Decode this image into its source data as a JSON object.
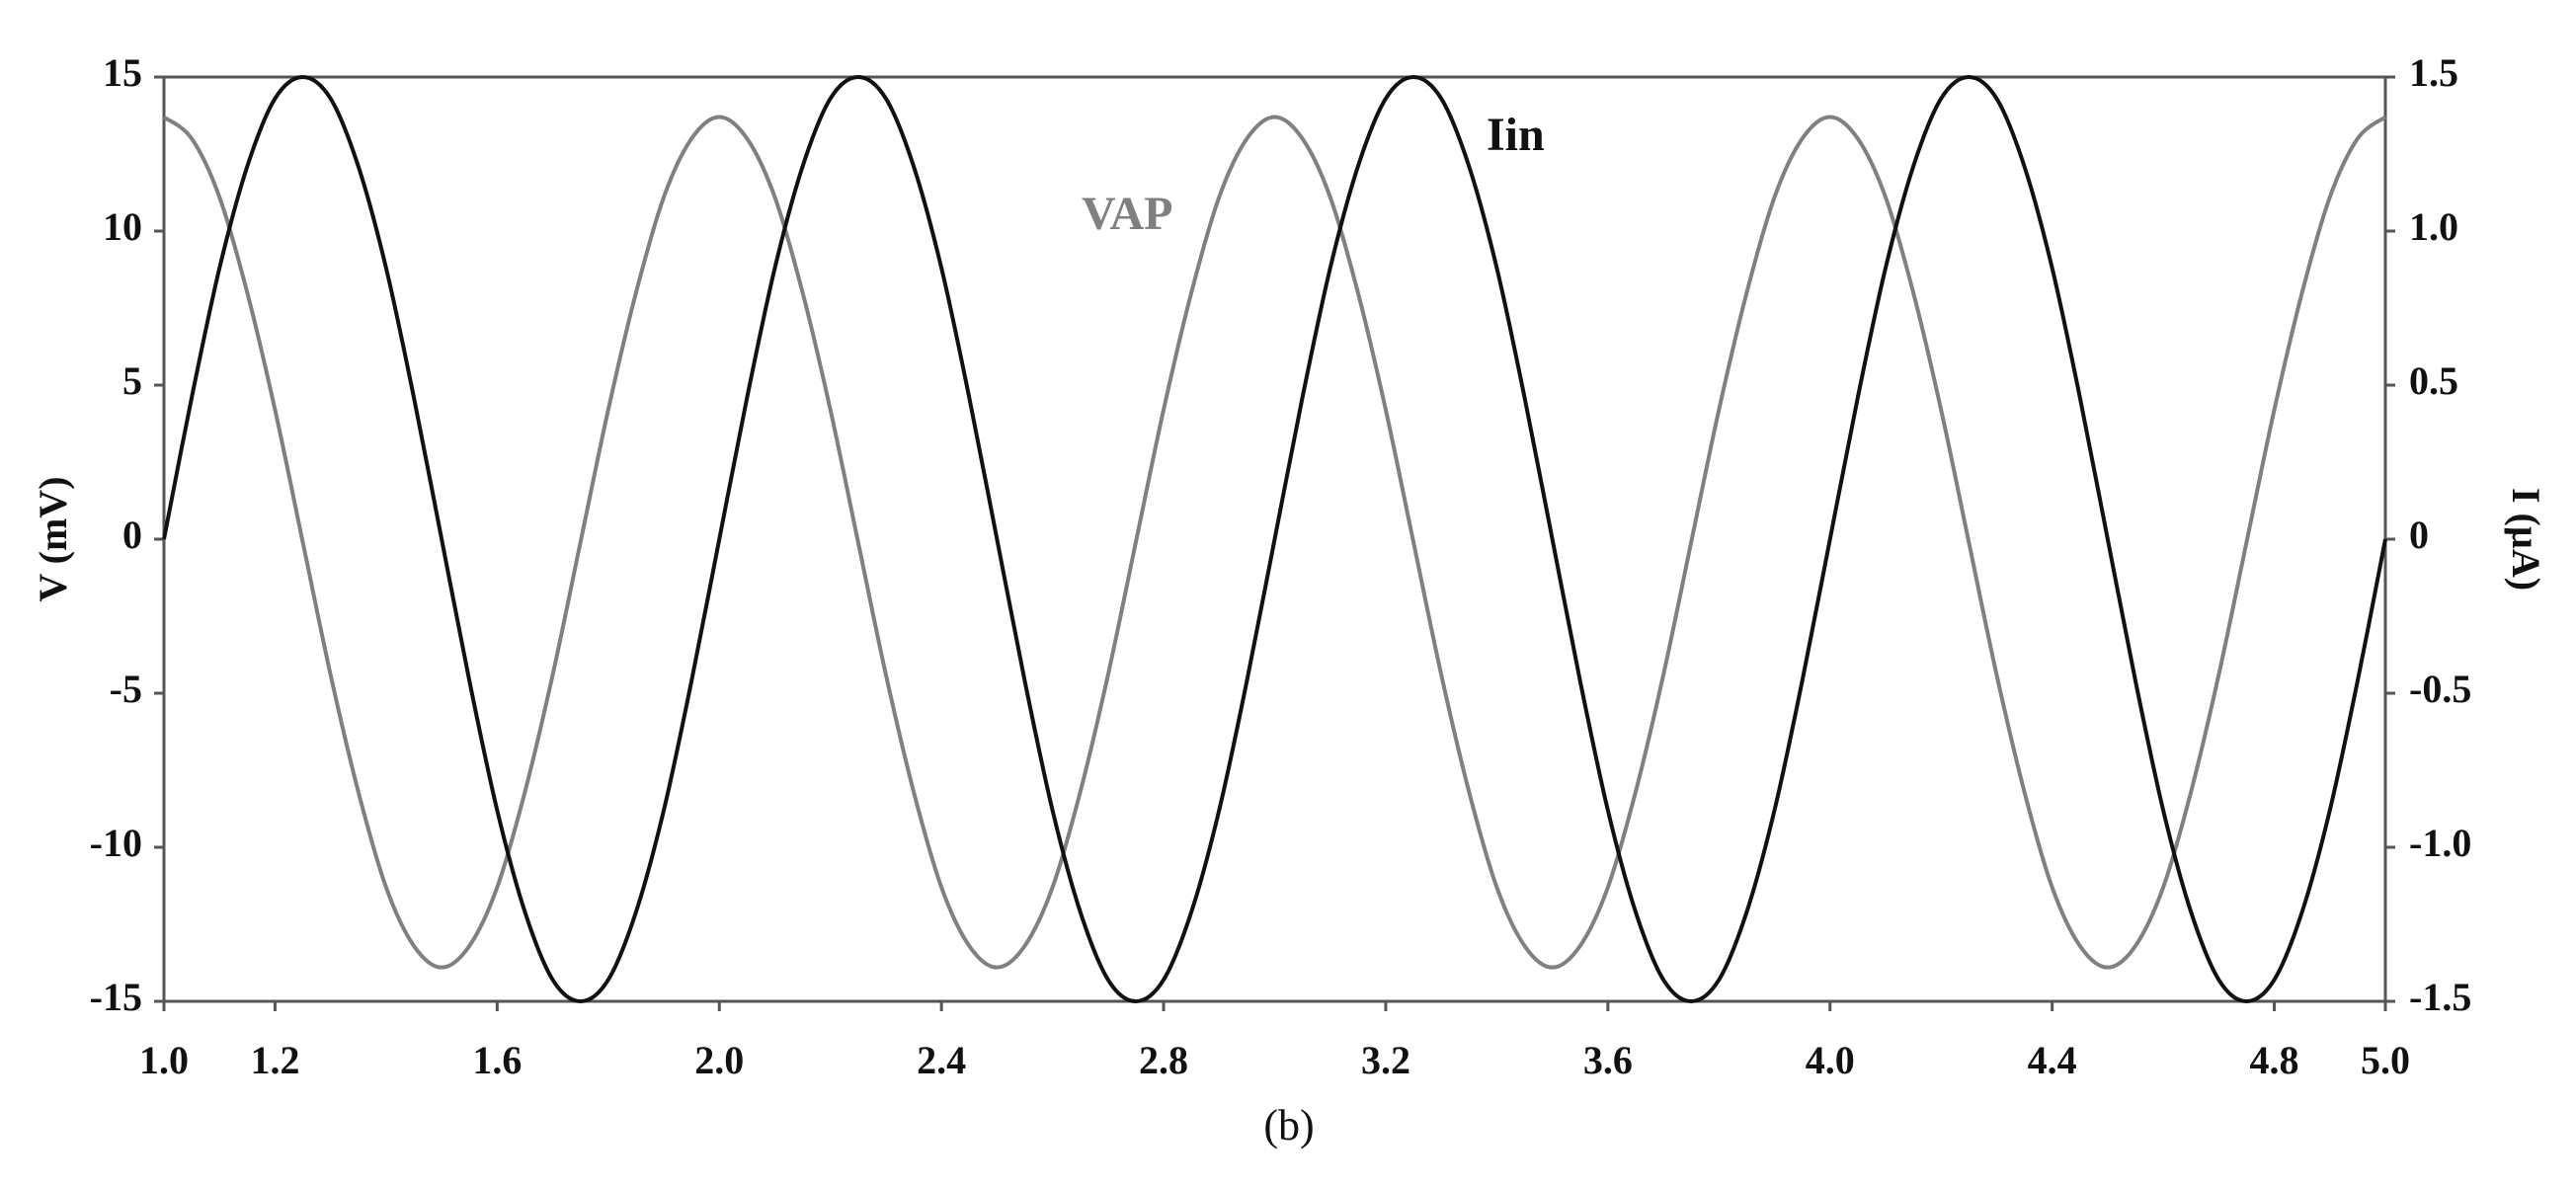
{
  "chart_data": {
    "type": "line",
    "title": "(b)",
    "y_label": "V (mV)",
    "y2_label": "I (µA)",
    "x": [
      1,
      1.05,
      1.1,
      1.15,
      1.2,
      1.25,
      1.3,
      1.35,
      1.4,
      1.45,
      1.5,
      1.55,
      1.6,
      1.65,
      1.7,
      1.75,
      1.8,
      1.85,
      1.9,
      1.95,
      2,
      2.05,
      2.1,
      2.15,
      2.2,
      2.25,
      2.3,
      2.35,
      2.4,
      2.45,
      2.5,
      2.55,
      2.6,
      2.65,
      2.7,
      2.75,
      2.8,
      2.85,
      2.9,
      2.95,
      3,
      3.05,
      3.1,
      3.15,
      3.2,
      3.25,
      3.3,
      3.35,
      3.4,
      3.45,
      3.5,
      3.55,
      3.6,
      3.65,
      3.7,
      3.75,
      3.8,
      3.85,
      3.9,
      3.95,
      4,
      4.05,
      4.1,
      4.15,
      4.2,
      4.25,
      4.3,
      4.35,
      4.4,
      4.45,
      4.5,
      4.55,
      4.6,
      4.65,
      4.7,
      4.75,
      4.8,
      4.85,
      4.9,
      4.95,
      5
    ],
    "series": [
      {
        "name": "VAP",
        "color": "#808080",
        "axis": "y",
        "values": [
          13.7,
          13.0,
          11.1,
          8.0,
          4.2,
          -0.1,
          -4.4,
          -8.2,
          -11.3,
          -13.2,
          -13.9,
          -13.2,
          -11.3,
          -8.2,
          -4.4,
          -0.1,
          4.2,
          8.0,
          11.1,
          13.0,
          13.7,
          13.0,
          11.1,
          8.0,
          4.2,
          -0.1,
          -4.4,
          -8.2,
          -11.3,
          -13.2,
          -13.9,
          -13.2,
          -11.3,
          -8.2,
          -4.4,
          -0.1,
          4.2,
          8.0,
          11.1,
          13.0,
          13.7,
          13.0,
          11.1,
          8.0,
          4.2,
          -0.1,
          -4.4,
          -8.2,
          -11.3,
          -13.2,
          -13.9,
          -13.2,
          -11.3,
          -8.2,
          -4.4,
          -0.1,
          4.2,
          8.0,
          11.1,
          13.0,
          13.7,
          13.0,
          11.1,
          8.0,
          4.2,
          -0.1,
          -4.4,
          -8.2,
          -11.3,
          -13.2,
          -13.9,
          -13.2,
          -11.3,
          -8.2,
          -4.4,
          -0.1,
          4.2,
          8.0,
          11.1,
          13.0,
          13.7
        ]
      },
      {
        "name": "Iin",
        "color": "#111111",
        "axis": "y2",
        "values": [
          0,
          0.46,
          0.88,
          1.21,
          1.43,
          1.5,
          1.43,
          1.21,
          0.88,
          0.46,
          0,
          -0.46,
          -0.88,
          -1.21,
          -1.43,
          -1.5,
          -1.43,
          -1.21,
          -0.88,
          -0.46,
          0,
          0.46,
          0.88,
          1.21,
          1.43,
          1.5,
          1.43,
          1.21,
          0.88,
          0.46,
          0,
          -0.46,
          -0.88,
          -1.21,
          -1.43,
          -1.5,
          -1.43,
          -1.21,
          -0.88,
          -0.46,
          0,
          0.46,
          0.88,
          1.21,
          1.43,
          1.5,
          1.43,
          1.21,
          0.88,
          0.46,
          0,
          -0.46,
          -0.88,
          -1.21,
          -1.43,
          -1.5,
          -1.43,
          -1.21,
          -0.88,
          -0.46,
          0,
          0.46,
          0.88,
          1.21,
          1.43,
          1.5,
          1.43,
          1.21,
          0.88,
          0.46,
          0,
          -0.46,
          -0.88,
          -1.21,
          -1.43,
          -1.5,
          -1.43,
          -1.21,
          -0.88,
          -0.46,
          0
        ]
      }
    ],
    "xlim": [
      1,
      5
    ],
    "xticks": [
      {
        "value": 1,
        "label": "1.0"
      },
      1.2,
      1.6,
      {
        "value": 2,
        "label": "2.0"
      },
      2.4,
      2.8,
      3.2,
      3.6,
      {
        "value": 4,
        "label": "4.0"
      },
      4.4,
      4.8,
      {
        "value": 5,
        "label": "5.0"
      }
    ],
    "ylim": [
      -15,
      15
    ],
    "yticks": [
      -15,
      -10,
      -5,
      0,
      5,
      10,
      15
    ],
    "y2lim": [
      -1.5,
      1.5
    ],
    "y2ticks": [
      -1.5,
      {
        "value": -1,
        "label": "-1.0"
      },
      -0.5,
      0,
      0.5,
      {
        "value": 1,
        "label": "1.0"
      },
      1.5
    ],
    "grid": false
  }
}
